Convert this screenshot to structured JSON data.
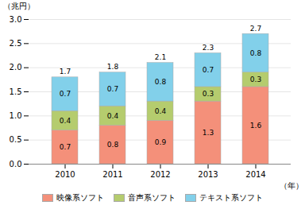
{
  "chart_data": {
    "type": "bar",
    "stacked": true,
    "categories": [
      "2010",
      "2011",
      "2012",
      "2013",
      "2014"
    ],
    "series": [
      {
        "name": "映像系ソフト",
        "color": "#f4907a",
        "values": [
          0.7,
          0.8,
          0.9,
          1.3,
          1.6
        ]
      },
      {
        "name": "音声系ソフト",
        "color": "#b5cc6e",
        "values": [
          0.4,
          0.4,
          0.4,
          0.3,
          0.3
        ]
      },
      {
        "name": "テキスト系ソフト",
        "color": "#82d0ea",
        "values": [
          0.7,
          0.7,
          0.8,
          0.7,
          0.8
        ]
      }
    ],
    "totals": [
      1.7,
      1.8,
      2.1,
      2.3,
      2.7
    ],
    "ylabel": "（兆円）",
    "xlabel": "（年）",
    "ylim": [
      0,
      3.0
    ],
    "yticks": [
      {
        "value": 0,
        "label": "0.0"
      },
      0.5,
      {
        "value": 1,
        "label": "1.0"
      },
      1.5,
      {
        "value": 2,
        "label": "2.0"
      },
      2.5,
      {
        "value": 3,
        "label": "3.0"
      }
    ],
    "grid": true,
    "data_labels": true,
    "legend": "bottom"
  }
}
